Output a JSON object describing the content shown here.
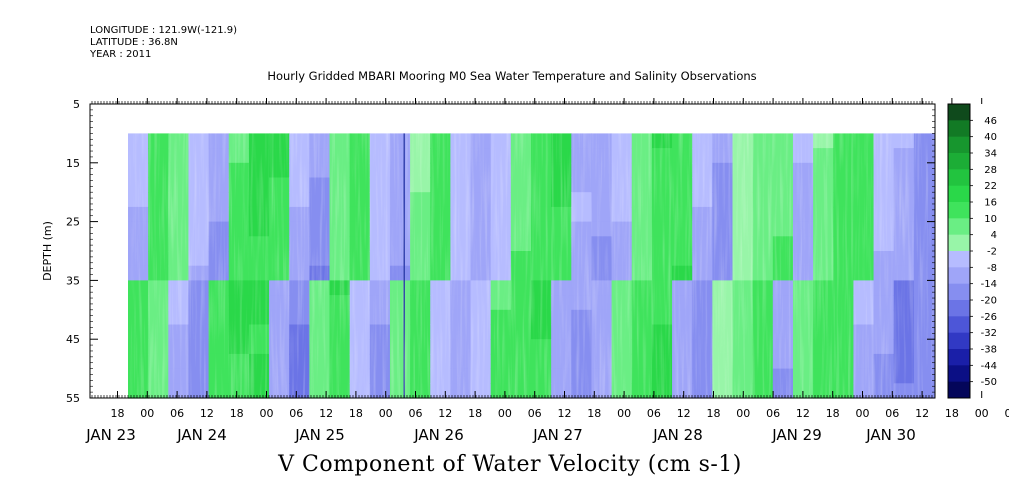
{
  "header": {
    "longitude": "LONGITUDE : 121.9W(-121.9)",
    "latitude": "LATITUDE : 36.8N",
    "year": "YEAR : 2011"
  },
  "chart_data": {
    "type": "heatmap",
    "title": "Hourly Gridded MBARI Mooring M0 Sea Water Temperature and Salinity Observations",
    "xlabel": "",
    "ylabel": "DEPTH (m)",
    "colorbar_label": "V Component of Water Velocity (cm s-1)",
    "y_ticks": [
      "5",
      "15",
      "25",
      "35",
      "45",
      "55"
    ],
    "ylim": [
      5,
      55
    ],
    "y_inverted": true,
    "data_depth_range": [
      10,
      55
    ],
    "x_hour_ticks": [
      "18",
      "00",
      "06",
      "12",
      "18",
      "00",
      "06",
      "12",
      "18",
      "00",
      "06",
      "12",
      "18",
      "00",
      "06",
      "12",
      "18",
      "00",
      "06",
      "12",
      "18",
      "00",
      "06",
      "12",
      "18",
      "00",
      "06",
      "12",
      "18",
      "00",
      "06",
      "12"
    ],
    "x_date_labels": [
      "JAN 23",
      "JAN 24",
      "JAN 25",
      "JAN 26",
      "JAN 27",
      "JAN 28",
      "JAN 29",
      "JAN 30"
    ],
    "colorbar_labels": [
      "46",
      "40",
      "34",
      "28",
      "22",
      "16",
      "10",
      "4",
      "-2",
      "-8",
      "-14",
      "-20",
      "-26",
      "-32",
      "-38",
      "-44",
      "-50"
    ],
    "colorbar_colors": [
      "#0f4a1c",
      "#127a25",
      "#17962e",
      "#1cad36",
      "#22c43f",
      "#2ad849",
      "#3fe35c",
      "#6aee84",
      "#98f5a8",
      "#b6bcff",
      "#9fa5f8",
      "#868ef0",
      "#6b74e6",
      "#4d56d8",
      "#3139c4",
      "#1a1fa8",
      "#0b0f85",
      "#04065a"
    ],
    "grid": false,
    "legend": "right-colorbar",
    "v_component_by_hour": [
      -6,
      14,
      10,
      -8,
      -14,
      12,
      18,
      22,
      -10,
      -16,
      8,
      16,
      -6,
      -14,
      6,
      14,
      -6,
      -12,
      -4,
      10,
      14,
      20,
      -10,
      -14,
      -6,
      8,
      18,
      22,
      -8,
      -14,
      4,
      12,
      16,
      -10,
      6,
      14,
      18,
      -8,
      -10,
      -16
    ]
  }
}
